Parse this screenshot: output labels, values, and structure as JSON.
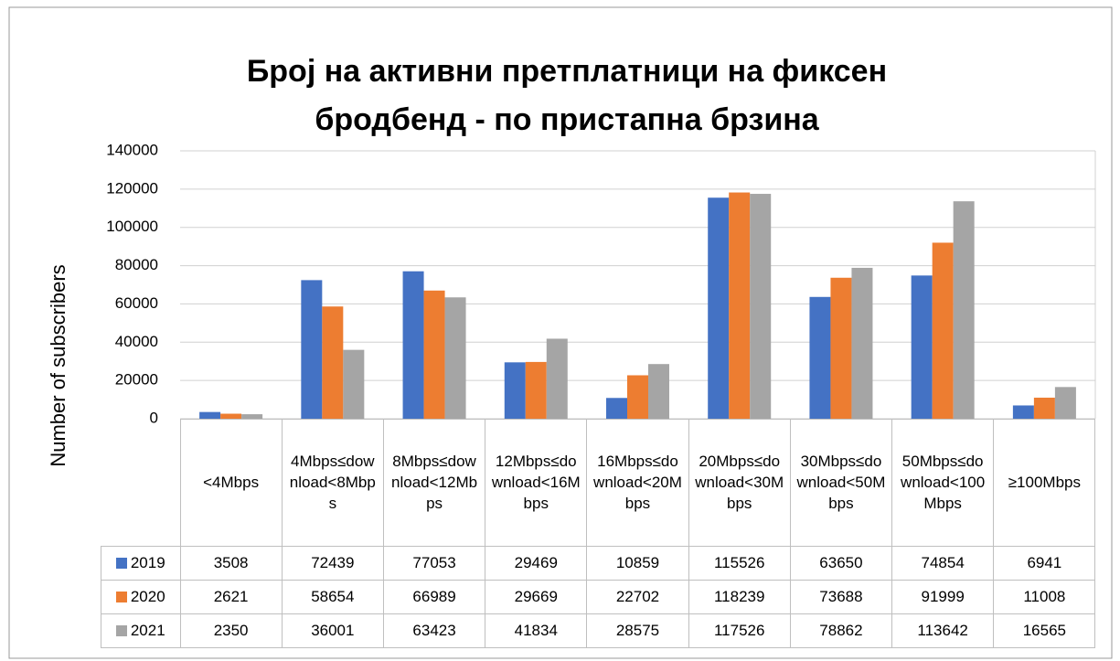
{
  "chart_data": {
    "type": "bar",
    "title": "Број на активни претплатници  на фиксен бродбенд - по  пристапна брзина",
    "y_label": "Number of subscribers",
    "categories": [
      "<4Mbps",
      "4Mbps≤download<8Mbps",
      "8Mbps≤download<12Mbps",
      "12Mbps≤download<16Mbps",
      "16Mbps≤download<20Mbps",
      "20Mbps≤download<30Mbps",
      "30Mbps≤download<50Mbps",
      "50Mbps≤download<100Mbps",
      "≥100Mbps"
    ],
    "series": [
      {
        "name": "2019",
        "color": "#4472c4",
        "values": [
          3508,
          72439,
          77053,
          29469,
          10859,
          115526,
          63650,
          74854,
          6941
        ]
      },
      {
        "name": "2020",
        "color": "#ed7d31",
        "values": [
          2621,
          58654,
          66989,
          29669,
          22702,
          118239,
          73688,
          91999,
          11008
        ]
      },
      {
        "name": "2021",
        "color": "#a5a5a5",
        "values": [
          2350,
          36001,
          63423,
          41834,
          28575,
          117526,
          78862,
          113642,
          16565
        ]
      }
    ],
    "ylim": [
      0,
      140000
    ],
    "yticks": [
      0,
      20000,
      40000,
      60000,
      80000,
      100000,
      120000,
      140000
    ],
    "grid": true,
    "data_table": true
  }
}
